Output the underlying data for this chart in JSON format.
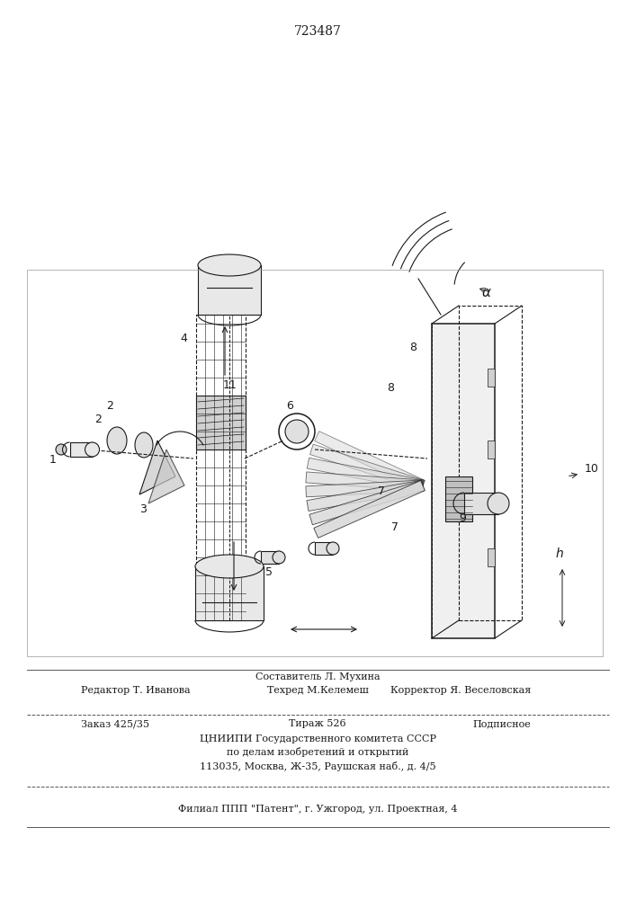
{
  "patent_number": "723487",
  "bg_color": "#ffffff",
  "line_color": "#1a1a1a",
  "figsize": [
    7.07,
    10.0
  ],
  "dpi": 100,
  "header_text": "723487",
  "footer_lines": [
    "Составитель Л. Мухина",
    "Редактор Т. Иванова          Техред М.Келемеш          Корректор Я. Веселовская",
    "Заказ 425/35               Тираж 526                    Подписное",
    "ЦНИИПИ Государственного комитета СССР",
    "по делам изобретений и открытий",
    "113035, Москва, Ж-35, Раушская наб., д. 4/5",
    "Филиал ППП \"Патент\", г. Ужгород, ул. Проектная, 4"
  ]
}
